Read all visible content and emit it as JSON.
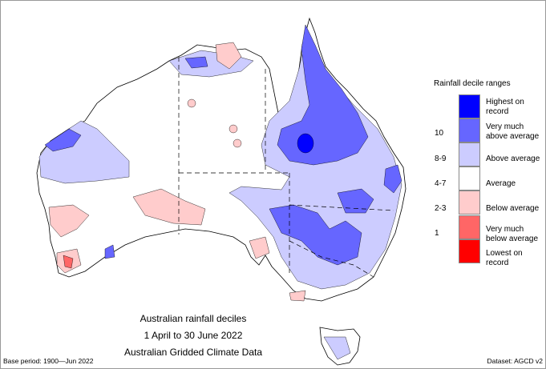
{
  "map": {
    "title": "Australian rainfall deciles",
    "period": "1 April to 30 June 2022",
    "source": "Australian Gridded Climate Data",
    "base_period": "Base period: 1900—Jun 2022",
    "dataset": "Dataset: AGCD v2"
  },
  "legend": {
    "title": "Rainfall decile ranges",
    "items": [
      {
        "decile": "",
        "label": "Highest on record",
        "color": "#0000ff"
      },
      {
        "decile": "10",
        "label": "Very much above average",
        "color": "#6666ff"
      },
      {
        "decile": "8-9",
        "label": "Above average",
        "color": "#ccccff"
      },
      {
        "decile": "4-7",
        "label": "Average",
        "color": "#ffffff"
      },
      {
        "decile": "2-3",
        "label": "Below average",
        "color": "#ffcccc"
      },
      {
        "decile": "1",
        "label": "Very much below average",
        "color": "#ff6666"
      },
      {
        "decile": "",
        "label": "Lowest on record",
        "color": "#ff0000"
      }
    ]
  }
}
